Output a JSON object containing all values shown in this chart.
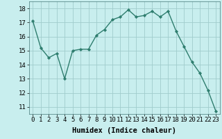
{
  "x": [
    0,
    1,
    2,
    3,
    4,
    5,
    6,
    7,
    8,
    9,
    10,
    11,
    12,
    13,
    14,
    15,
    16,
    17,
    18,
    19,
    20,
    21,
    22,
    23
  ],
  "y": [
    17.1,
    15.2,
    14.5,
    14.8,
    13.0,
    15.0,
    15.1,
    15.1,
    16.1,
    16.5,
    17.2,
    17.4,
    17.9,
    17.4,
    17.5,
    17.8,
    17.4,
    17.8,
    16.4,
    15.3,
    14.2,
    13.4,
    12.2,
    10.7
  ],
  "line_color": "#2e7d6e",
  "marker": "D",
  "marker_size": 2.2,
  "line_width": 1.0,
  "bg_color": "#c8eeee",
  "grid_color": "#a0cccc",
  "xlabel": "Humidex (Indice chaleur)",
  "ylabel_ticks": [
    11,
    12,
    13,
    14,
    15,
    16,
    17,
    18
  ],
  "xtick_labels": [
    "0",
    "1",
    "2",
    "3",
    "4",
    "5",
    "6",
    "7",
    "8",
    "9",
    "10",
    "11",
    "12",
    "13",
    "14",
    "15",
    "16",
    "17",
    "18",
    "19",
    "20",
    "21",
    "22",
    "23"
  ],
  "ylim": [
    10.5,
    18.5
  ],
  "xlim": [
    -0.5,
    23.5
  ],
  "xlabel_fontsize": 7.5,
  "tick_fontsize": 6.5
}
